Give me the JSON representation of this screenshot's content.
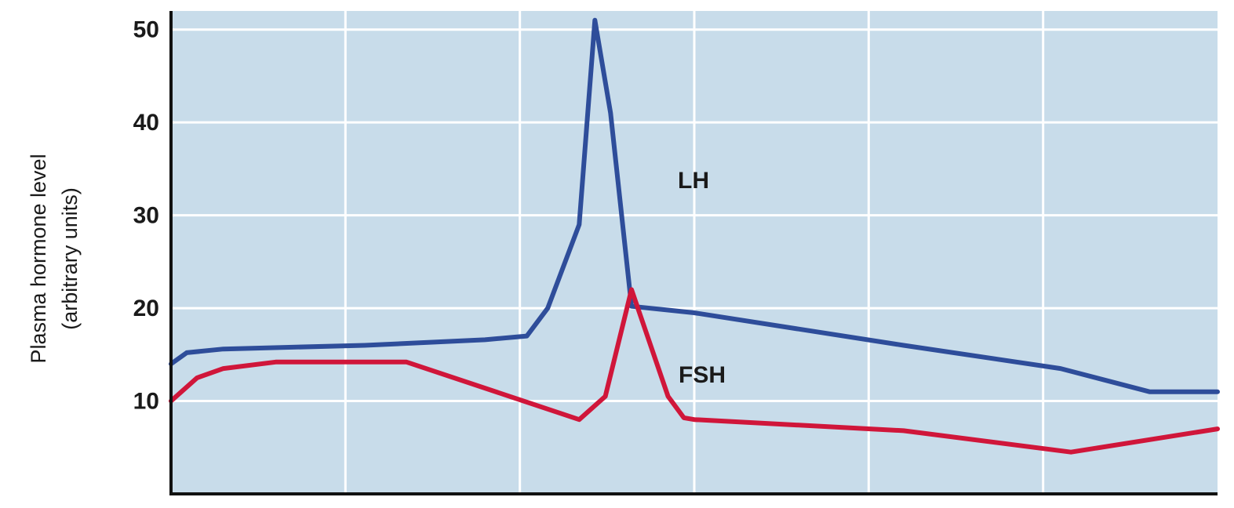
{
  "chart_data": {
    "type": "line",
    "title": "",
    "ylabel_lines": [
      "Plasma hormone level",
      "(arbitrary units)"
    ],
    "xlabel": "",
    "ylim": [
      0,
      52
    ],
    "yticks": [
      10,
      20,
      30,
      40,
      50
    ],
    "grid": true,
    "background": "#c8dcea",
    "series": [
      {
        "name": "LH",
        "color": "#2e4d9a",
        "x": [
          0,
          3,
          10,
          37,
          60,
          68,
          72,
          78,
          81,
          84,
          88,
          100,
          140,
          170,
          187,
          200
        ],
        "y": [
          14,
          15.2,
          15.6,
          16,
          16.6,
          17,
          20,
          29,
          51,
          41,
          20.2,
          19.5,
          16,
          13.5,
          11,
          11
        ]
      },
      {
        "name": "FSH",
        "color": "#d0163a",
        "x": [
          0,
          5,
          10,
          20,
          45,
          78,
          83,
          88,
          95,
          98,
          100,
          140,
          172,
          200
        ],
        "y": [
          10,
          12.5,
          13.5,
          14.2,
          14.2,
          8,
          10.5,
          22,
          10.5,
          8.2,
          8,
          6.8,
          4.5,
          7
        ]
      }
    ],
    "series_labels": [
      "LH",
      "FSH"
    ]
  }
}
